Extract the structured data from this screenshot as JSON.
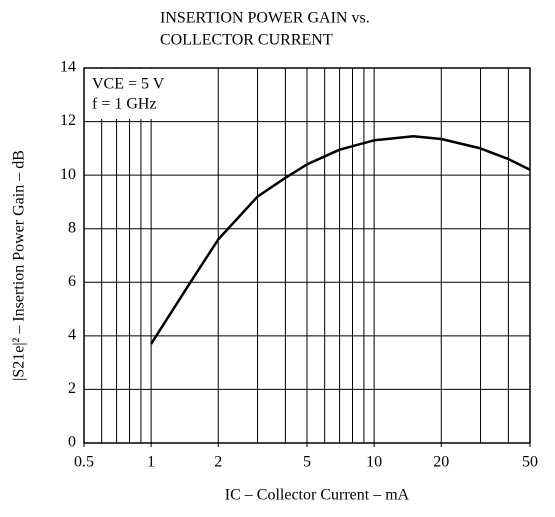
{
  "chart_data": {
    "type": "line",
    "title": [
      "INSERTION POWER GAIN vs.",
      "COLLECTOR CURRENT"
    ],
    "xlabel": "IC – Collector Current – mA",
    "ylabel": "|S21e|² – Insertion Power Gain – dB",
    "annotations": [
      "VCE = 5  V",
      "f = 1 GHz"
    ],
    "xlog": true,
    "xlim": [
      0.5,
      50
    ],
    "xticks": [
      0.5,
      1,
      2,
      5,
      10,
      20,
      50
    ],
    "xgrid": [
      0.6,
      0.7,
      0.8,
      0.9,
      1,
      2,
      3,
      4,
      5,
      6,
      7,
      8,
      9,
      10,
      20,
      30,
      40
    ],
    "ylim": [
      0,
      14
    ],
    "yticks": [
      0,
      2,
      4,
      6,
      8,
      10,
      12,
      14
    ],
    "grid": true,
    "x": [
      1,
      1.5,
      2,
      3,
      4,
      5,
      7,
      10,
      15,
      20,
      30,
      40,
      50
    ],
    "series": [
      {
        "color": "#000000",
        "values": [
          3.7,
          6.0,
          7.6,
          9.2,
          9.9,
          10.4,
          10.95,
          11.3,
          11.45,
          11.35,
          11.0,
          10.6,
          10.2
        ]
      }
    ]
  }
}
